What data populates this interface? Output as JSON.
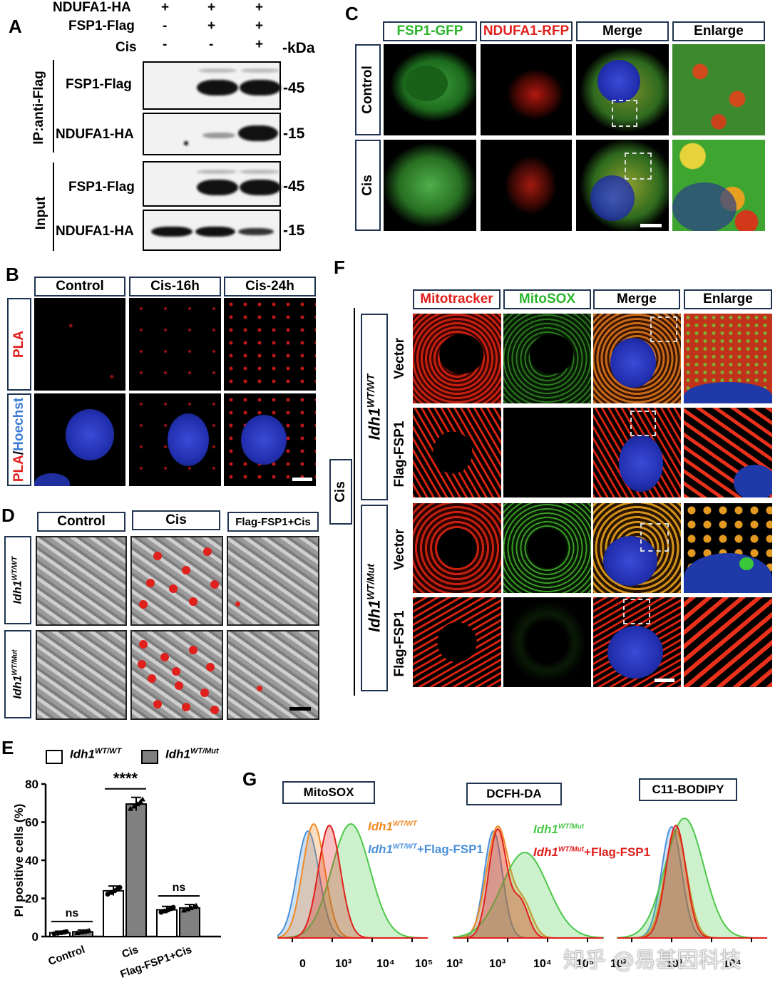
{
  "panels": {
    "A": "A",
    "B": "B",
    "C": "C",
    "D": "D",
    "E": "E",
    "F": "F",
    "G": "G"
  },
  "panelA": {
    "rows": [
      {
        "label": "NDUFA1-HA",
        "values": [
          "+",
          "+",
          "+"
        ]
      },
      {
        "label": "FSP1-Flag",
        "values": [
          "-",
          "+",
          "+"
        ]
      },
      {
        "label": "Cis",
        "values": [
          "-",
          "-",
          "+"
        ]
      }
    ],
    "kda": "-kDa",
    "ip_label": "IP:anti-Flag",
    "input_label": "Input",
    "blots": [
      {
        "label": "FSP1-Flag",
        "mw": "-45"
      },
      {
        "label": "NDUFA1-HA",
        "mw": "-15"
      },
      {
        "label": "FSP1-Flag",
        "mw": "-45"
      },
      {
        "label": "NDUFA1-HA",
        "mw": "-15"
      }
    ]
  },
  "panelB": {
    "columns": [
      "Control",
      "Cis-16h",
      "Cis-24h"
    ],
    "row1": "PLA",
    "row2_a": "PLA",
    "row2_sep": "/",
    "row2_b": "Hoechst"
  },
  "panelC": {
    "columns": [
      "FSP1-GFP",
      "NDUFA1-RFP",
      "Merge",
      "Enlarge"
    ],
    "rows": [
      "Control",
      "Cis"
    ]
  },
  "panelD": {
    "columns": [
      "Control",
      "Cis",
      "Flag-FSP1+Cis"
    ],
    "rows": [
      {
        "base": "Idh1",
        "sup": "WT/WT"
      },
      {
        "base": "Idh1",
        "sup": "WT/Mut"
      }
    ]
  },
  "panelE": {
    "legend": [
      {
        "base": "Idh1",
        "sup": "WT/WT",
        "color": "#ffffff"
      },
      {
        "base": "Idh1",
        "sup": "WT/Mut",
        "color": "#808080"
      }
    ],
    "ylabel": "PI positive cells (%)",
    "yticks": [
      "0",
      "20",
      "40",
      "60",
      "80"
    ],
    "sig": [
      "ns",
      "****",
      "ns"
    ]
  },
  "chart_data": {
    "type": "bar",
    "categories": [
      "Control",
      "Cis",
      "Flag-FSP1+Cis"
    ],
    "series": [
      {
        "name": "Idh1 WT/WT",
        "values": [
          2,
          24,
          14
        ]
      },
      {
        "name": "Idh1 WT/Mut",
        "values": [
          2.5,
          69.5,
          15
        ]
      }
    ],
    "errors": [
      [
        0.8,
        2.5,
        1.8
      ],
      [
        0.9,
        3.5,
        1.8
      ]
    ],
    "ylabel": "PI positive cells (%)",
    "ylim": [
      0,
      80
    ]
  },
  "panelF": {
    "columns": [
      "Mitotracker",
      "MitoSOX",
      "Merge",
      "Enlarge"
    ],
    "treatment": "Cis",
    "groups": [
      {
        "base": "Idh1",
        "sup": "WT/WT"
      },
      {
        "base": "Idh1",
        "sup": "WT/Mut"
      }
    ],
    "rows": [
      "Vector",
      "Flag-FSP1",
      "Vector",
      "Flag-FSP1"
    ]
  },
  "panelG": {
    "titles": [
      "MitoSOX",
      "DCFH-DA",
      "C11-BODIPY"
    ],
    "legend": [
      {
        "base": "Idh1",
        "sup": "WT/WT",
        "suffix": "",
        "color": "#f08a24"
      },
      {
        "base": "Idh1",
        "sup": "WT/WT",
        "suffix": "+Flag-FSP1",
        "color": "#4a90d9"
      },
      {
        "base": "Idh1",
        "sup": "WT/Mut",
        "suffix": "",
        "color": "#4cc84a"
      },
      {
        "base": "Idh1",
        "sup": "WT/Mut",
        "suffix": "+Flag-FSP1",
        "color": "#e0201c"
      }
    ],
    "axis1": [
      "0",
      "10³",
      "10⁴",
      "10⁵"
    ],
    "axis2": [
      "10²",
      "10³",
      "10⁴",
      "10⁵"
    ],
    "axis3": [
      "10²",
      "10³",
      "10⁴"
    ]
  },
  "watermark": "知乎 @易基因科技"
}
